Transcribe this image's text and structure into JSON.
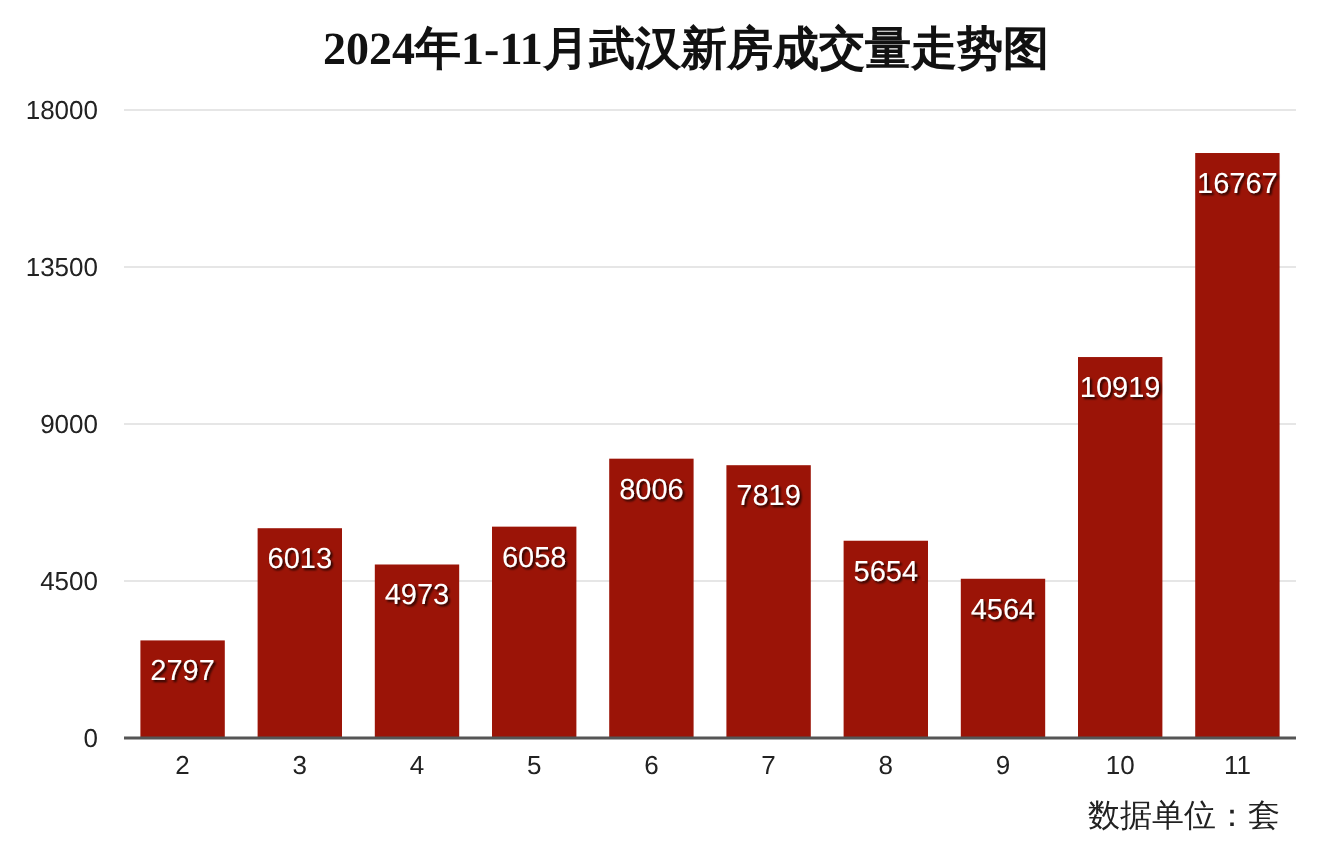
{
  "chart_data": {
    "type": "bar",
    "title": "2024年1-11月武汉新房成交量走势图",
    "categories": [
      "2",
      "3",
      "4",
      "5",
      "6",
      "7",
      "8",
      "9",
      "10",
      "11"
    ],
    "values": [
      2797,
      6013,
      4973,
      6058,
      8006,
      7819,
      5654,
      4564,
      10919,
      16767
    ],
    "color": "#9b1407",
    "ylim": [
      0,
      18000
    ],
    "yticks": [
      0,
      4500,
      9000,
      13500,
      18000
    ],
    "grid": "y",
    "data_labels": true,
    "annotations": [
      "数据单位：套"
    ]
  }
}
